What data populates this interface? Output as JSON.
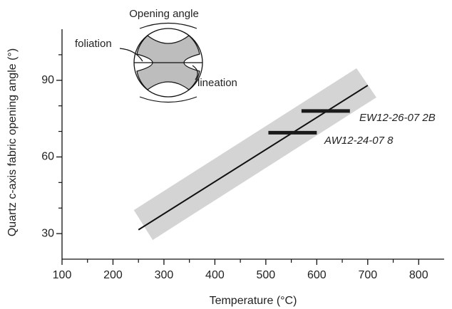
{
  "chart_data": {
    "type": "line",
    "xlabel": "Temperature (°C)",
    "ylabel": "Quartz c-axis fabric opening angle (°)",
    "xlim": [
      100,
      850
    ],
    "ylim": [
      20,
      110
    ],
    "xticks": [
      100,
      200,
      300,
      400,
      500,
      600,
      700,
      800
    ],
    "yticks": [
      30,
      60,
      90
    ],
    "xminorticks": [
      150,
      250,
      350,
      450,
      550,
      650,
      750
    ],
    "yminorticks": [
      40,
      50,
      70,
      80,
      100
    ],
    "trend": {
      "x": [
        250,
        700
      ],
      "y": [
        31.5,
        88
      ],
      "color": "#111111"
    },
    "band": {
      "x": [
        241,
        678,
        717,
        278
      ],
      "y": [
        39.2,
        94.7,
        83.3,
        27.5
      ],
      "color": "#d4d4d4"
    },
    "ranges": [
      {
        "name": "EW12-26-07 2B",
        "xmin": 570,
        "xmax": 665,
        "y": 78
      },
      {
        "name": "AW12-24-07 8",
        "xmin": 505,
        "xmax": 600,
        "y": 69.5
      }
    ],
    "range_color": "#1a1a1a",
    "inset": {
      "opening_angle": "Opening angle",
      "foliation": "foliation",
      "lineation": "lineation"
    }
  }
}
